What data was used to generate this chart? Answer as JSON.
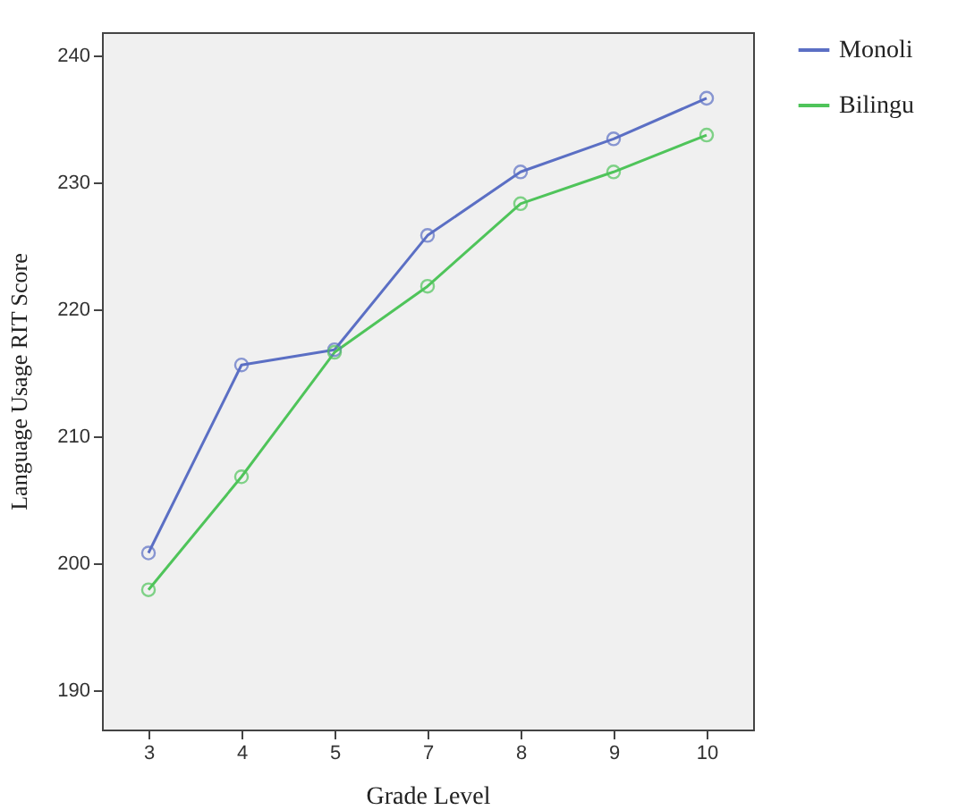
{
  "chart_data": {
    "type": "line",
    "xlabel": "Grade Level",
    "ylabel": "Language Usage RIT Score",
    "categories": [
      "3",
      "4",
      "5",
      "7",
      "8",
      "9",
      "10"
    ],
    "series": [
      {
        "name": "Monoli",
        "color": "#5b6fc4",
        "values": [
          200.8,
          215.6,
          216.8,
          225.8,
          230.8,
          233.4,
          236.6
        ]
      },
      {
        "name": "Bilingu",
        "color": "#4fc45a",
        "values": [
          197.9,
          206.8,
          216.6,
          221.8,
          228.3,
          230.8,
          233.7
        ]
      }
    ],
    "ylim": [
      186.9,
      241.8
    ],
    "yticks": [
      190,
      200,
      210,
      220,
      230,
      240
    ],
    "grid": false,
    "legend": "right",
    "marker": "circle",
    "line_style": "solid"
  }
}
